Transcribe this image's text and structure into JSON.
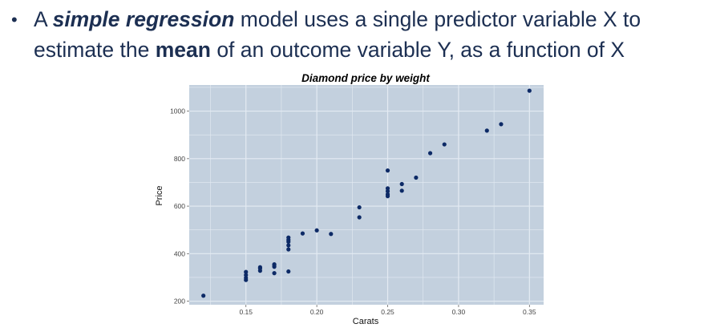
{
  "slide": {
    "bullet": "•",
    "line1": {
      "pre": "A ",
      "emphasis1": "simple regression",
      "post": " model uses a single predictor variable X to"
    },
    "line2": {
      "pre": "estimate the ",
      "emphasis2": "mean",
      "post": " of an outcome variable Y, as a function of X"
    }
  },
  "chart_data": {
    "type": "scatter",
    "title": "Diamond price by weight",
    "xlabel": "Carats",
    "ylabel": "Price",
    "xlim": [
      0.11,
      0.36
    ],
    "ylim": [
      185,
      1110
    ],
    "x_ticks": [
      0.15,
      0.2,
      0.25,
      0.3,
      0.35
    ],
    "x_tick_labels": [
      "0.15",
      "0.20",
      "0.25",
      "0.30",
      "0.35"
    ],
    "y_ticks": [
      200,
      400,
      600,
      800,
      1000
    ],
    "y_tick_labels": [
      "200",
      "400",
      "600",
      "800",
      "1000"
    ],
    "grid": true,
    "legend": "none",
    "colors": {
      "panel": "#c3d0de",
      "grid": "#e4ebf3",
      "point": "#0d2a66"
    },
    "points": [
      [
        0.12,
        223
      ],
      [
        0.15,
        289
      ],
      [
        0.15,
        298
      ],
      [
        0.15,
        310
      ],
      [
        0.15,
        323
      ],
      [
        0.16,
        328
      ],
      [
        0.16,
        338
      ],
      [
        0.16,
        343
      ],
      [
        0.17,
        318
      ],
      [
        0.17,
        345
      ],
      [
        0.17,
        352
      ],
      [
        0.17,
        355
      ],
      [
        0.18,
        325
      ],
      [
        0.18,
        418
      ],
      [
        0.18,
        435
      ],
      [
        0.18,
        450
      ],
      [
        0.18,
        458
      ],
      [
        0.18,
        468
      ],
      [
        0.19,
        485
      ],
      [
        0.2,
        498
      ],
      [
        0.21,
        483
      ],
      [
        0.23,
        553
      ],
      [
        0.23,
        595
      ],
      [
        0.25,
        642
      ],
      [
        0.25,
        650
      ],
      [
        0.25,
        663
      ],
      [
        0.25,
        675
      ],
      [
        0.25,
        750
      ],
      [
        0.26,
        665
      ],
      [
        0.26,
        693
      ],
      [
        0.27,
        720
      ],
      [
        0.28,
        823
      ],
      [
        0.29,
        860
      ],
      [
        0.32,
        918
      ],
      [
        0.33,
        945
      ],
      [
        0.35,
        1086
      ]
    ]
  }
}
